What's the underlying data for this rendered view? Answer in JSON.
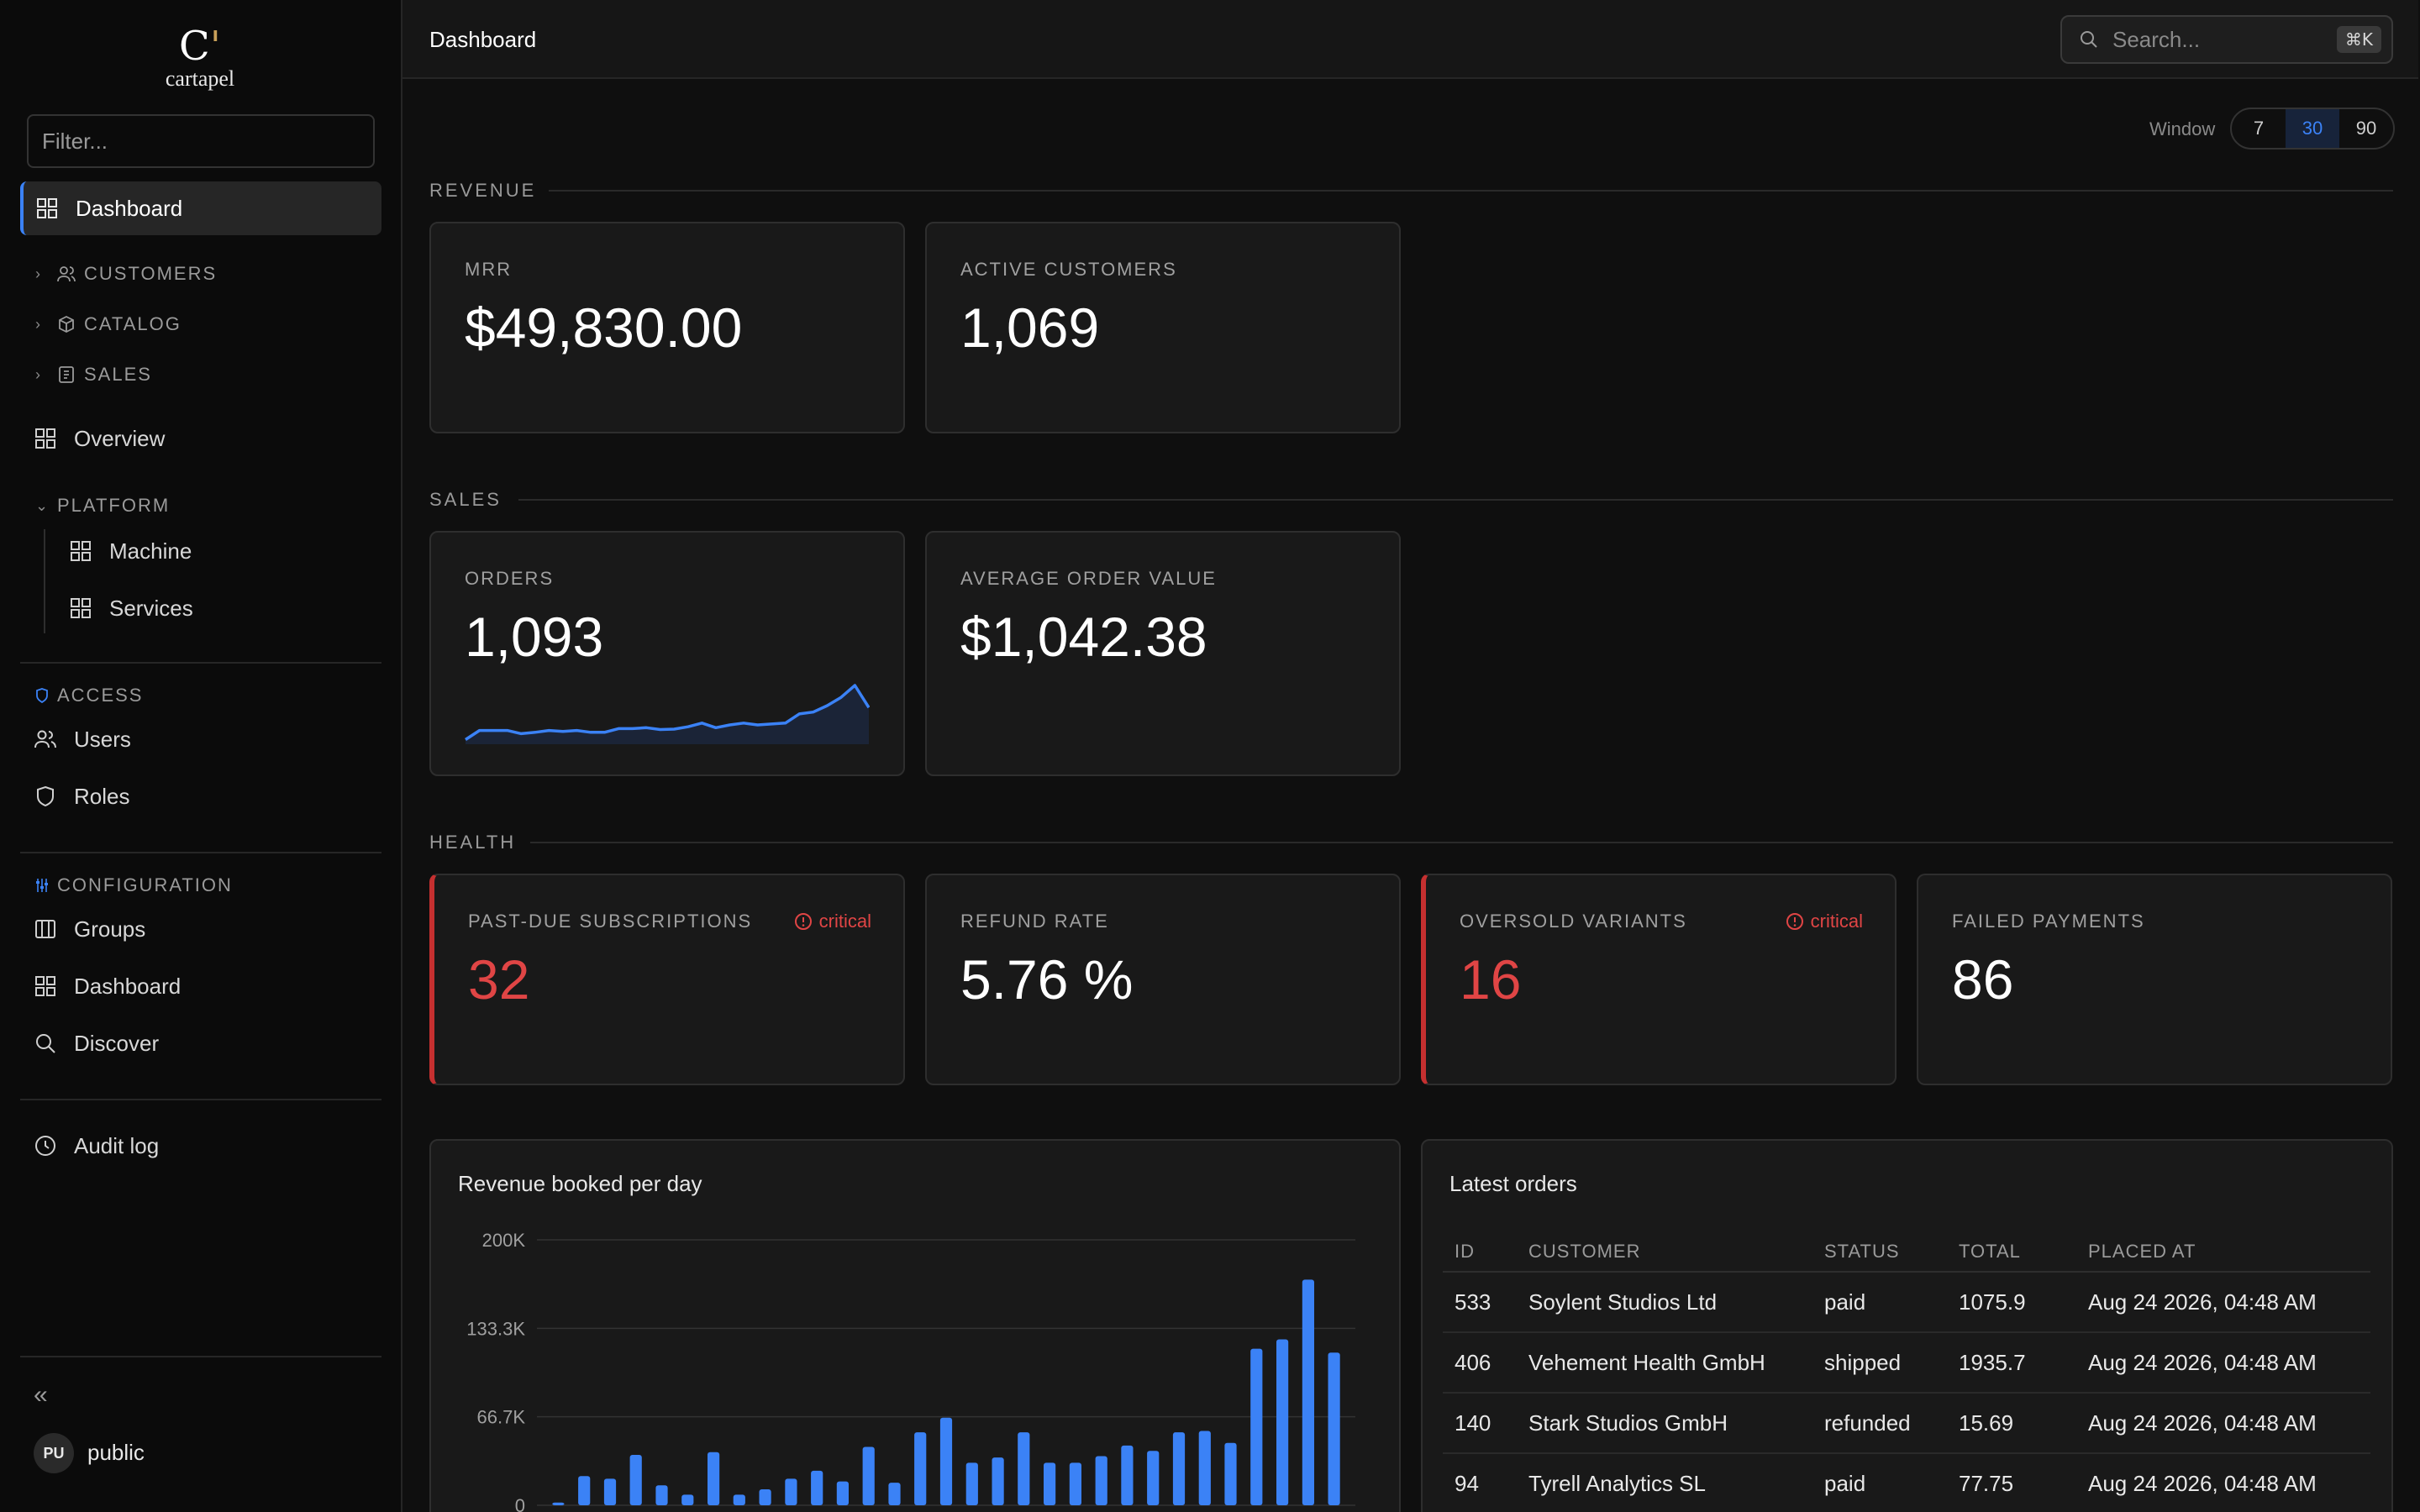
{
  "app": {
    "logo_text": "cartapel",
    "logo_mark": "C"
  },
  "sidebar": {
    "filter_placeholder": "Filter...",
    "active_item": "Dashboard",
    "groups_collapsed": [
      "CUSTOMERS",
      "CATALOG",
      "SALES"
    ],
    "overview": "Overview",
    "platform": {
      "label": "PLATFORM",
      "items": [
        "Machine",
        "Services"
      ]
    },
    "access": {
      "label": "ACCESS",
      "items": [
        "Users",
        "Roles"
      ]
    },
    "configuration": {
      "label": "CONFIGURATION",
      "items": [
        "Groups",
        "Dashboard",
        "Discover"
      ]
    },
    "audit_log": "Audit log",
    "collapse_icon": "«",
    "user": {
      "initials": "PU",
      "name": "public"
    }
  },
  "header": {
    "title": "Dashboard",
    "search_placeholder": "Search...",
    "search_shortcut": "⌘K"
  },
  "window": {
    "label": "Window",
    "options": [
      "7",
      "30",
      "90"
    ],
    "selected": "30"
  },
  "sections": {
    "revenue": {
      "label": "REVENUE",
      "cards": [
        {
          "label": "MRR",
          "value": "$49,830.00"
        },
        {
          "label": "ACTIVE CUSTOMERS",
          "value": "1,069"
        }
      ]
    },
    "sales": {
      "label": "SALES",
      "cards": [
        {
          "label": "ORDERS",
          "value": "1,093"
        },
        {
          "label": "AVERAGE ORDER VALUE",
          "value": "$1,042.38"
        }
      ]
    },
    "health": {
      "label": "HEALTH",
      "cards": [
        {
          "label": "PAST-DUE SUBSCRIPTIONS",
          "value": "32",
          "badge": "critical"
        },
        {
          "label": "REFUND RATE",
          "value": "5.76 %"
        },
        {
          "label": "OVERSOLD VARIANTS",
          "value": "16",
          "badge": "critical"
        },
        {
          "label": "FAILED PAYMENTS",
          "value": "86"
        }
      ]
    }
  },
  "orders_sparkline": {
    "values": [
      1,
      3,
      3,
      3,
      2.3,
      2.6,
      3,
      2.8,
      3,
      2.6,
      2.6,
      3.4,
      3.4,
      3.6,
      3.2,
      3.3,
      3.8,
      4.6,
      3.6,
      4.2,
      4.6,
      4.2,
      4.4,
      4.6,
      6.6,
      7,
      8.4,
      10.2,
      12.8,
      8
    ]
  },
  "chart_data": {
    "type": "bar",
    "title": "Revenue booked per day",
    "y_ticks": [
      "200K",
      "133.3K",
      "66.7K",
      "0"
    ],
    "ylim": [
      0,
      200000
    ],
    "values": [
      2000,
      22000,
      20000,
      38000,
      15000,
      8000,
      40000,
      8000,
      12000,
      20000,
      26000,
      18000,
      44000,
      17000,
      55000,
      66000,
      32000,
      36000,
      55000,
      32000,
      32000,
      37000,
      45000,
      41000,
      55000,
      56000,
      47000,
      118000,
      125000,
      170000,
      115000
    ],
    "color": "#3b82f6"
  },
  "latest_orders": {
    "title": "Latest orders",
    "columns": [
      "ID",
      "CUSTOMER",
      "STATUS",
      "TOTAL",
      "PLACED AT"
    ],
    "rows": [
      [
        "533",
        "Soylent Studios Ltd",
        "paid",
        "1075.9",
        "Aug 24 2026, 04:48 AM"
      ],
      [
        "406",
        "Vehement Health GmbH",
        "shipped",
        "1935.7",
        "Aug 24 2026, 04:48 AM"
      ],
      [
        "140",
        "Stark Studios GmbH",
        "refunded",
        "15.69",
        "Aug 24 2026, 04:48 AM"
      ],
      [
        "94",
        "Tyrell Analytics SL",
        "paid",
        "77.75",
        "Aug 24 2026, 04:48 AM"
      ]
    ]
  },
  "colors": {
    "accent": "#3b82f6",
    "critical": "#e04545",
    "background": "#0f0f0f",
    "card": "#191919"
  }
}
